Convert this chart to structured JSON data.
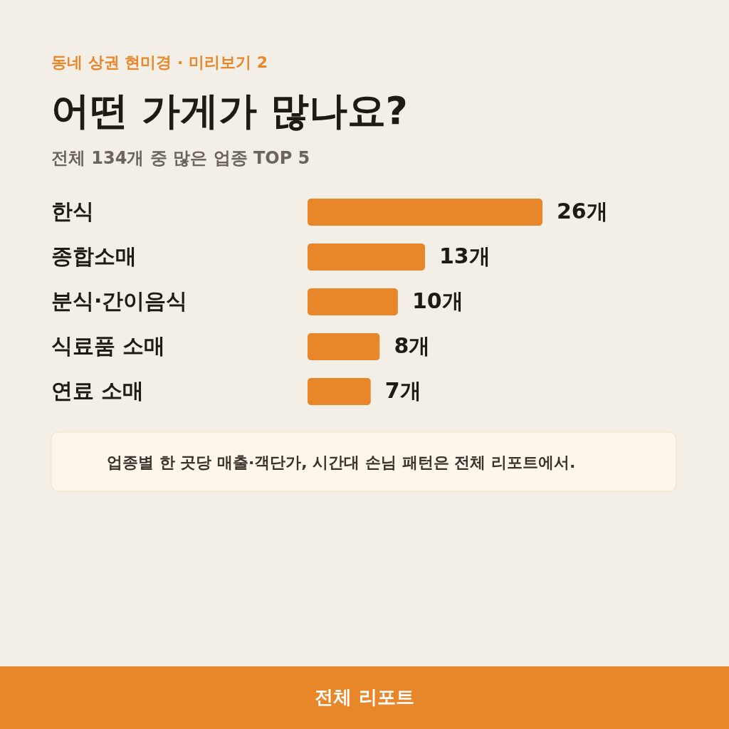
{
  "chart_data": {
    "type": "bar",
    "orientation": "horizontal",
    "title": "어떤 가게가 많나요?",
    "subtitle": "전체 134개 중 많은 업종 TOP 5",
    "categories": [
      "한식",
      "종합소매",
      "분식·간이음식",
      "식료품 소매",
      "연료 소매"
    ],
    "values": [
      26,
      13,
      10,
      8,
      7
    ],
    "color": "#e8862a",
    "value_labels": [
      "26개",
      "13개",
      "10개",
      "8개",
      "7개"
    ],
    "annotations": [
      "동네 상권 현미경 · 미리보기 2",
      "업종별 한 곳당 매출·객단가, 시간대 손님 패턴은 전체 리포트에서.",
      "전체 리포트"
    ]
  }
}
